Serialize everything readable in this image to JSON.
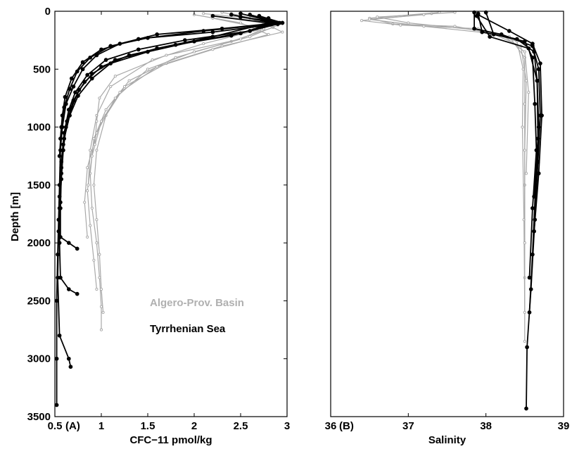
{
  "chart_data": [
    {
      "type": "line",
      "panel_label": "(A)",
      "xlabel": "CFC−11 pmol/kg",
      "ylabel": "Depth [m]",
      "xlim": [
        0.5,
        3
      ],
      "ylim": [
        3500,
        0
      ],
      "x_ticks": [
        "0.5",
        "1",
        "1.5",
        "2",
        "2.5",
        "3"
      ],
      "y_ticks": [
        "0",
        "500",
        "1000",
        "1500",
        "2000",
        "2500",
        "3000",
        "3500"
      ],
      "legend": [
        {
          "name": "Algero-Prov. Basin",
          "color": "#a8a8a8"
        },
        {
          "name": "Tyrrhenian Sea",
          "color": "#000000"
        }
      ],
      "series": [
        {
          "group": "Algero-Prov. Basin",
          "points": [
            [
              2.1,
              20
            ],
            [
              2.6,
              60
            ],
            [
              2.85,
              140
            ],
            [
              2.4,
              260
            ],
            [
              1.8,
              400
            ],
            [
              1.3,
              600
            ],
            [
              1.05,
              850
            ],
            [
              0.92,
              1100
            ],
            [
              0.88,
              1400
            ],
            [
              0.9,
              1700
            ],
            [
              0.95,
              2000
            ],
            [
              0.98,
              2300
            ],
            [
              1.0,
              2550
            ],
            [
              1.0,
              2750
            ]
          ]
        },
        {
          "group": "Algero-Prov. Basin",
          "points": [
            [
              2.3,
              10
            ],
            [
              2.7,
              80
            ],
            [
              2.95,
              180
            ],
            [
              2.3,
              300
            ],
            [
              1.7,
              450
            ],
            [
              1.25,
              650
            ],
            [
              1.05,
              900
            ],
            [
              0.95,
              1200
            ],
            [
              0.92,
              1500
            ],
            [
              0.95,
              1800
            ],
            [
              0.98,
              2100
            ],
            [
              1.0,
              2400
            ],
            [
              1.02,
              2600
            ]
          ]
        },
        {
          "group": "Algero-Prov. Basin",
          "points": [
            [
              2.0,
              30
            ],
            [
              2.5,
              100
            ],
            [
              2.8,
              200
            ],
            [
              2.2,
              330
            ],
            [
              1.6,
              480
            ],
            [
              1.2,
              700
            ],
            [
              1.0,
              950
            ],
            [
              0.9,
              1250
            ],
            [
              0.85,
              1550
            ],
            [
              0.88,
              1850
            ],
            [
              0.92,
              2150
            ],
            [
              0.95,
              2400
            ]
          ]
        },
        {
          "group": "Algero-Prov. Basin",
          "points": [
            [
              2.2,
              40
            ],
            [
              2.9,
              120
            ],
            [
              2.6,
              220
            ],
            [
              2.0,
              350
            ],
            [
              1.5,
              500
            ],
            [
              1.15,
              750
            ],
            [
              0.95,
              1050
            ],
            [
              0.85,
              1350
            ],
            [
              0.82,
              1650
            ],
            [
              0.85,
              1950
            ]
          ]
        },
        {
          "group": "Algero-Prov. Basin",
          "points": [
            [
              2.4,
              20
            ],
            [
              2.8,
              90
            ],
            [
              2.7,
              160
            ],
            [
              2.1,
              280
            ],
            [
              1.55,
              420
            ],
            [
              1.1,
              650
            ],
            [
              0.95,
              900
            ],
            [
              0.88,
              1200
            ],
            [
              0.86,
              1500
            ]
          ]
        },
        {
          "group": "Algero-Prov. Basin",
          "points": [
            [
              2.2,
              60
            ],
            [
              2.75,
              150
            ],
            [
              2.5,
              240
            ],
            [
              1.7,
              380
            ],
            [
              1.15,
              560
            ],
            [
              0.98,
              750
            ],
            [
              0.95,
              950
            ],
            [
              0.93,
              1150
            ]
          ]
        },
        {
          "group": "Tyrrhenian Sea",
          "points": [
            [
              2.5,
              20
            ],
            [
              2.9,
              100
            ],
            [
              2.3,
              150
            ],
            [
              1.6,
              200
            ],
            [
              1.2,
              280
            ],
            [
              0.95,
              380
            ],
            [
              0.8,
              500
            ],
            [
              0.7,
              650
            ],
            [
              0.62,
              800
            ],
            [
              0.58,
              1000
            ],
            [
              0.56,
              1200
            ],
            [
              0.55,
              1500
            ],
            [
              0.54,
              1800
            ],
            [
              0.53,
              2100
            ],
            [
              0.52,
              2500
            ],
            [
              0.52,
              3000
            ],
            [
              0.52,
              3400
            ]
          ]
        },
        {
          "group": "Tyrrhenian Sea",
          "points": [
            [
              2.7,
              40
            ],
            [
              2.95,
              100
            ],
            [
              2.6,
              170
            ],
            [
              1.9,
              250
            ],
            [
              1.4,
              330
            ],
            [
              1.05,
              420
            ],
            [
              0.85,
              550
            ],
            [
              0.72,
              700
            ],
            [
              0.65,
              850
            ],
            [
              0.6,
              1050
            ],
            [
              0.57,
              1300
            ],
            [
              0.55,
              1600
            ],
            [
              0.54,
              1900
            ],
            [
              0.53,
              2300
            ],
            [
              0.55,
              2800
            ],
            [
              0.65,
              3000
            ],
            [
              0.67,
              3070
            ]
          ]
        },
        {
          "group": "Tyrrhenian Sea",
          "points": [
            [
              2.4,
              30
            ],
            [
              2.85,
              100
            ],
            [
              2.5,
              190
            ],
            [
              2.0,
              260
            ],
            [
              1.5,
              350
            ],
            [
              1.1,
              450
            ],
            [
              0.9,
              580
            ],
            [
              0.75,
              730
            ],
            [
              0.66,
              900
            ],
            [
              0.6,
              1100
            ],
            [
              0.57,
              1350
            ],
            [
              0.56,
              1650
            ],
            [
              0.55,
              2000
            ],
            [
              0.56,
              2300
            ],
            [
              0.65,
              2400
            ],
            [
              0.74,
              2440
            ]
          ]
        },
        {
          "group": "Tyrrhenian Sea",
          "points": [
            [
              2.6,
              30
            ],
            [
              2.92,
              100
            ],
            [
              2.4,
              210
            ],
            [
              1.8,
              290
            ],
            [
              1.3,
              380
            ],
            [
              1.0,
              480
            ],
            [
              0.82,
              610
            ],
            [
              0.7,
              770
            ],
            [
              0.63,
              950
            ],
            [
              0.59,
              1150
            ],
            [
              0.57,
              1400
            ],
            [
              0.56,
              1700
            ],
            [
              0.56,
              1950
            ],
            [
              0.65,
              2000
            ],
            [
              0.74,
              2050
            ]
          ]
        },
        {
          "group": "Tyrrhenian Sea",
          "points": [
            [
              2.2,
              40
            ],
            [
              2.8,
              100
            ],
            [
              2.2,
              220
            ],
            [
              1.6,
              320
            ],
            [
              1.15,
              420
            ],
            [
              0.9,
              540
            ],
            [
              0.76,
              680
            ],
            [
              0.68,
              830
            ],
            [
              0.62,
              1000
            ],
            [
              0.59,
              1200
            ],
            [
              0.57,
              1450
            ],
            [
              0.55,
              1700
            ]
          ]
        },
        {
          "group": "Tyrrhenian Sea",
          "points": [
            [
              2.8,
              60
            ],
            [
              2.9,
              110
            ],
            [
              2.2,
              180
            ],
            [
              1.5,
              230
            ],
            [
              1.1,
              300
            ],
            [
              0.88,
              400
            ],
            [
              0.74,
              520
            ],
            [
              0.66,
              670
            ],
            [
              0.6,
              830
            ],
            [
              0.57,
              1000
            ],
            [
              0.55,
              1250
            ]
          ]
        },
        {
          "group": "Tyrrhenian Sea",
          "points": [
            [
              2.5,
              50
            ],
            [
              2.95,
              100
            ],
            [
              2.1,
              170
            ],
            [
              1.4,
              240
            ],
            [
              1.0,
              330
            ],
            [
              0.8,
              440
            ],
            [
              0.68,
              580
            ],
            [
              0.61,
              740
            ],
            [
              0.58,
              900
            ],
            [
              0.56,
              1100
            ]
          ]
        }
      ]
    },
    {
      "type": "line",
      "panel_label": "(B)",
      "xlabel": "Salinity",
      "ylabel": "",
      "xlim": [
        36,
        39
      ],
      "ylim": [
        3500,
        0
      ],
      "x_ticks": [
        "36",
        "37",
        "38",
        "39"
      ],
      "y_ticks": [],
      "series": [
        {
          "group": "Algero-Prov. Basin",
          "points": [
            [
              37.4,
              10
            ],
            [
              36.5,
              60
            ],
            [
              36.8,
              110
            ],
            [
              37.6,
              130
            ],
            [
              38.3,
              220
            ],
            [
              38.5,
              400
            ],
            [
              38.5,
              800
            ],
            [
              38.5,
              1500
            ],
            [
              38.5,
              2300
            ],
            [
              38.5,
              2850
            ]
          ]
        },
        {
          "group": "Algero-Prov. Basin",
          "points": [
            [
              37.3,
              20
            ],
            [
              36.4,
              80
            ],
            [
              36.9,
              120
            ],
            [
              37.9,
              150
            ],
            [
              38.4,
              260
            ],
            [
              38.48,
              500
            ],
            [
              38.47,
              1000
            ],
            [
              38.49,
              1800
            ],
            [
              38.5,
              2600
            ]
          ]
        },
        {
          "group": "Algero-Prov. Basin",
          "points": [
            [
              37.6,
              10
            ],
            [
              36.6,
              50
            ],
            [
              37.0,
              100
            ],
            [
              38.0,
              170
            ],
            [
              38.45,
              300
            ],
            [
              38.52,
              600
            ],
            [
              38.5,
              1200
            ],
            [
              38.5,
              2000
            ]
          ]
        },
        {
          "group": "Algero-Prov. Basin",
          "points": [
            [
              37.2,
              30
            ],
            [
              36.5,
              70
            ],
            [
              37.2,
              130
            ],
            [
              38.2,
              200
            ],
            [
              38.5,
              350
            ],
            [
              38.55,
              700
            ],
            [
              38.52,
              1400
            ]
          ]
        },
        {
          "group": "Tyrrhenian Sea",
          "points": [
            [
              37.85,
              10
            ],
            [
              37.85,
              150
            ],
            [
              38.2,
              200
            ],
            [
              38.6,
              300
            ],
            [
              38.68,
              500
            ],
            [
              38.7,
              900
            ],
            [
              38.67,
              1300
            ],
            [
              38.63,
              1800
            ],
            [
              38.58,
              2400
            ],
            [
              38.53,
              2900
            ],
            [
              38.52,
              3430
            ]
          ]
        },
        {
          "group": "Tyrrhenian Sea",
          "points": [
            [
              37.9,
              20
            ],
            [
              37.95,
              180
            ],
            [
              38.4,
              240
            ],
            [
              38.62,
              350
            ],
            [
              38.66,
              600
            ],
            [
              38.68,
              1000
            ],
            [
              38.64,
              1500
            ],
            [
              38.6,
              2100
            ],
            [
              38.56,
              2600
            ]
          ]
        },
        {
          "group": "Tyrrhenian Sea",
          "points": [
            [
              38.0,
              10
            ],
            [
              38.1,
              200
            ],
            [
              38.5,
              260
            ],
            [
              38.6,
              400
            ],
            [
              38.63,
              800
            ],
            [
              38.65,
              1200
            ],
            [
              38.6,
              1700
            ],
            [
              38.56,
              2300
            ]
          ]
        },
        {
          "group": "Tyrrhenian Sea",
          "points": [
            [
              37.9,
              30
            ],
            [
              38.3,
              170
            ],
            [
              38.6,
              280
            ],
            [
              38.7,
              450
            ],
            [
              38.72,
              900
            ],
            [
              38.68,
              1400
            ],
            [
              38.62,
              1900
            ]
          ]
        },
        {
          "group": "Tyrrhenian Sea",
          "points": [
            [
              37.88,
              40
            ],
            [
              38.05,
              220
            ],
            [
              38.55,
              320
            ],
            [
              38.66,
              600
            ],
            [
              38.67,
              1100
            ],
            [
              38.62,
              1600
            ]
          ]
        }
      ]
    }
  ]
}
